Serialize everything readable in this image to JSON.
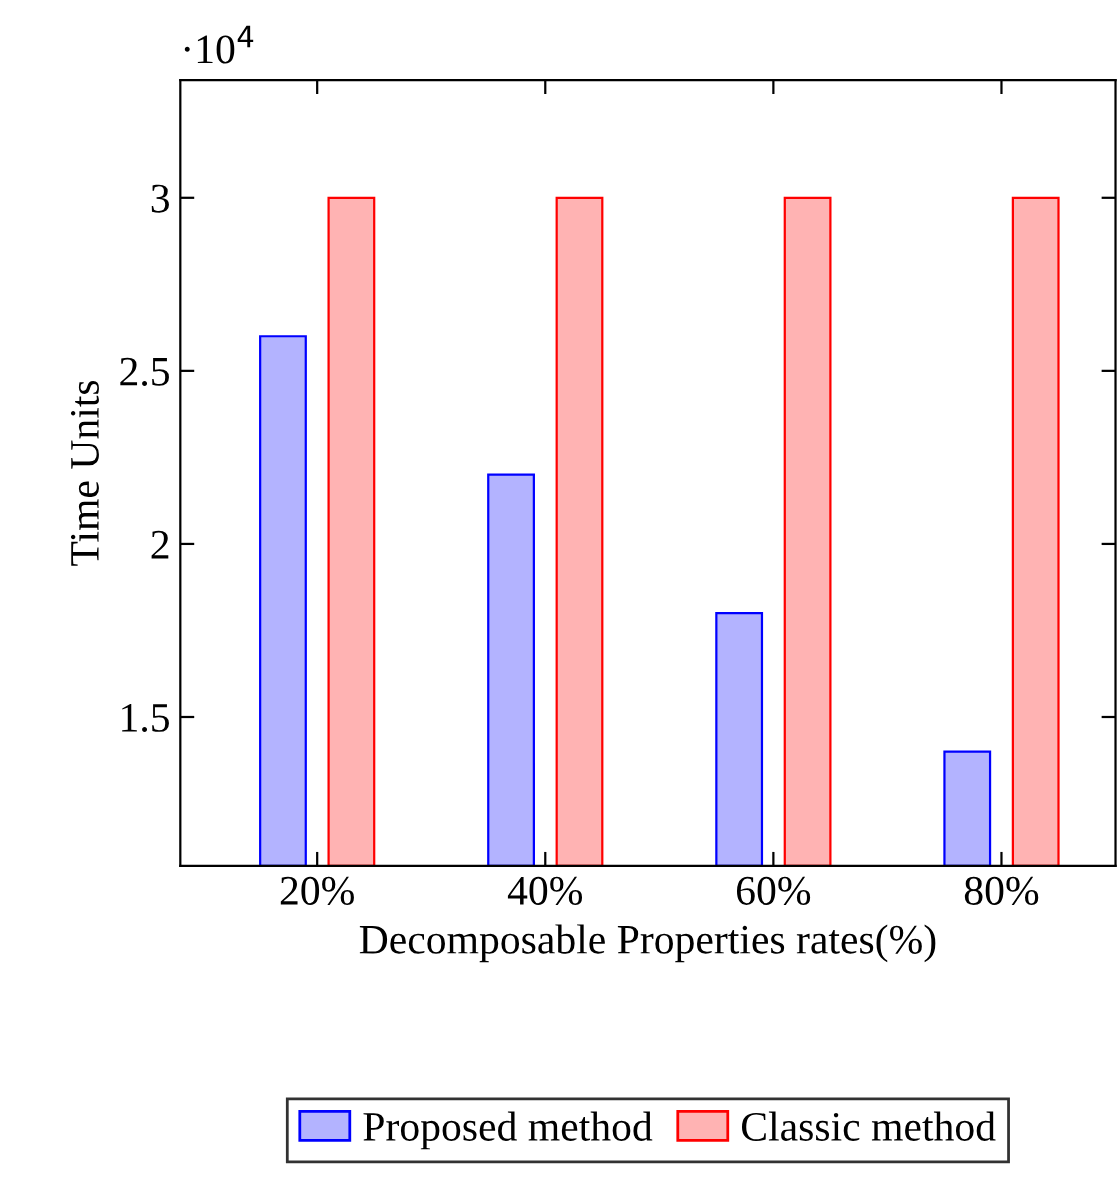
{
  "chart_data": {
    "type": "bar",
    "xlabel": "Decomposable Properties rates(%)",
    "ylabel": "Time Units",
    "categories": [
      "20%",
      "40%",
      "60%",
      "80%"
    ],
    "series": [
      {
        "name": "Proposed method",
        "color": "#b3b3ff",
        "values": [
          2.6,
          2.2,
          1.8,
          1.4
        ]
      },
      {
        "name": "Classic method",
        "color": "#ffb3b3",
        "values": [
          3,
          3,
          3,
          3
        ]
      }
    ],
    "ylim": [
      1.07,
      3.34
    ],
    "yticks": [
      1.5,
      2,
      2.5,
      3
    ],
    "annotations": [
      "·10$^{4}$"
    ],
    "grid": false,
    "legend": "bottom"
  }
}
